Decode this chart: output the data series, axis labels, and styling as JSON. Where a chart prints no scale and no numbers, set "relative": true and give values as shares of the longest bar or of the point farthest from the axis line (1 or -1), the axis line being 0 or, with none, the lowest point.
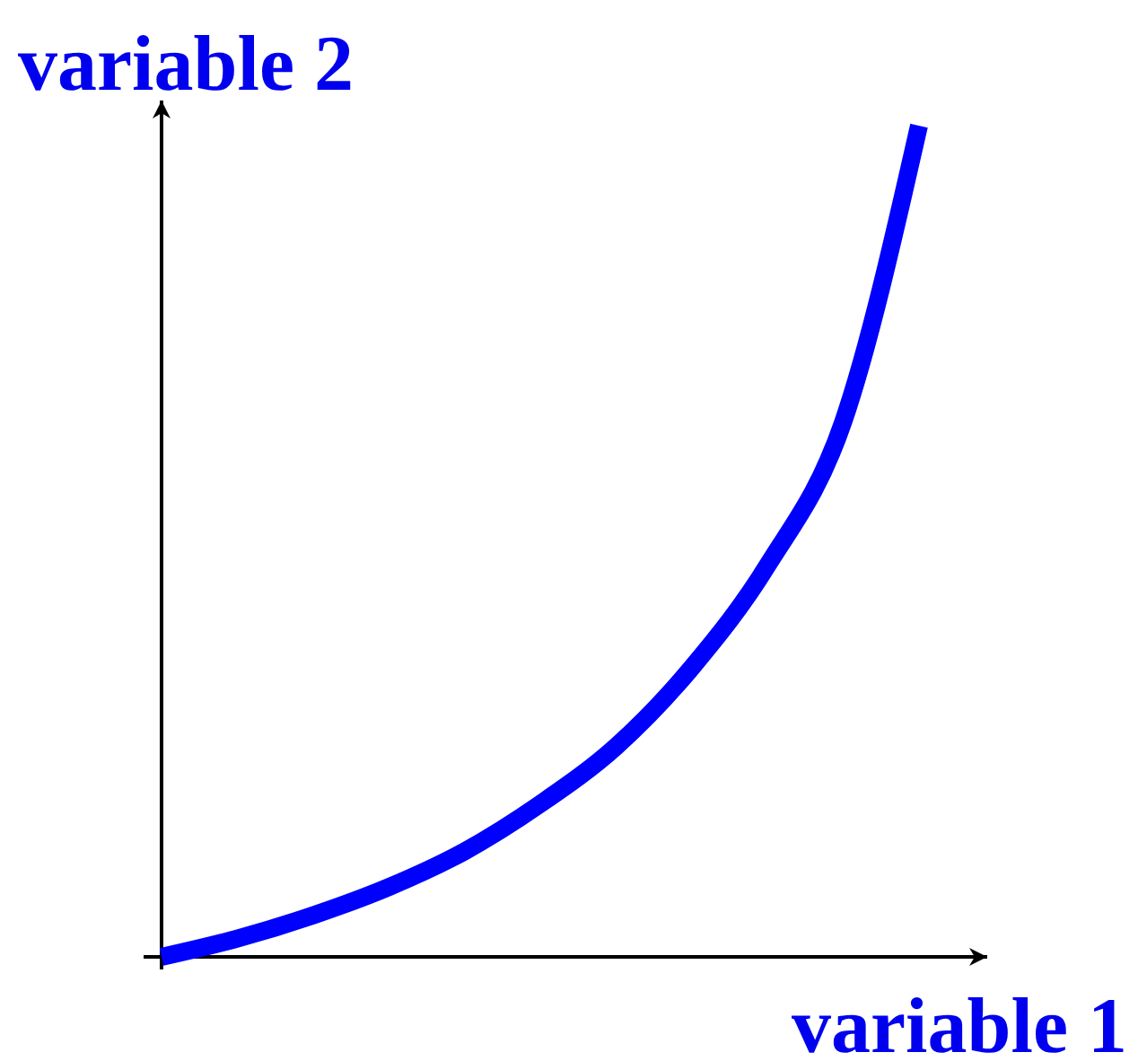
{
  "chart_data": {
    "type": "line",
    "relative": true,
    "xlabel": "variable 1",
    "ylabel": "variable 2",
    "categories": [
      null,
      null,
      null,
      null,
      null,
      null,
      null,
      null,
      null,
      null,
      null
    ],
    "series": [
      {
        "color": "#0000ff",
        "values": [
          0,
          0.022,
          0.05,
          0.084,
          0.127,
          0.184,
          0.253,
          0.348,
          0.471,
          0.644,
          1
        ]
      }
    ]
  }
}
